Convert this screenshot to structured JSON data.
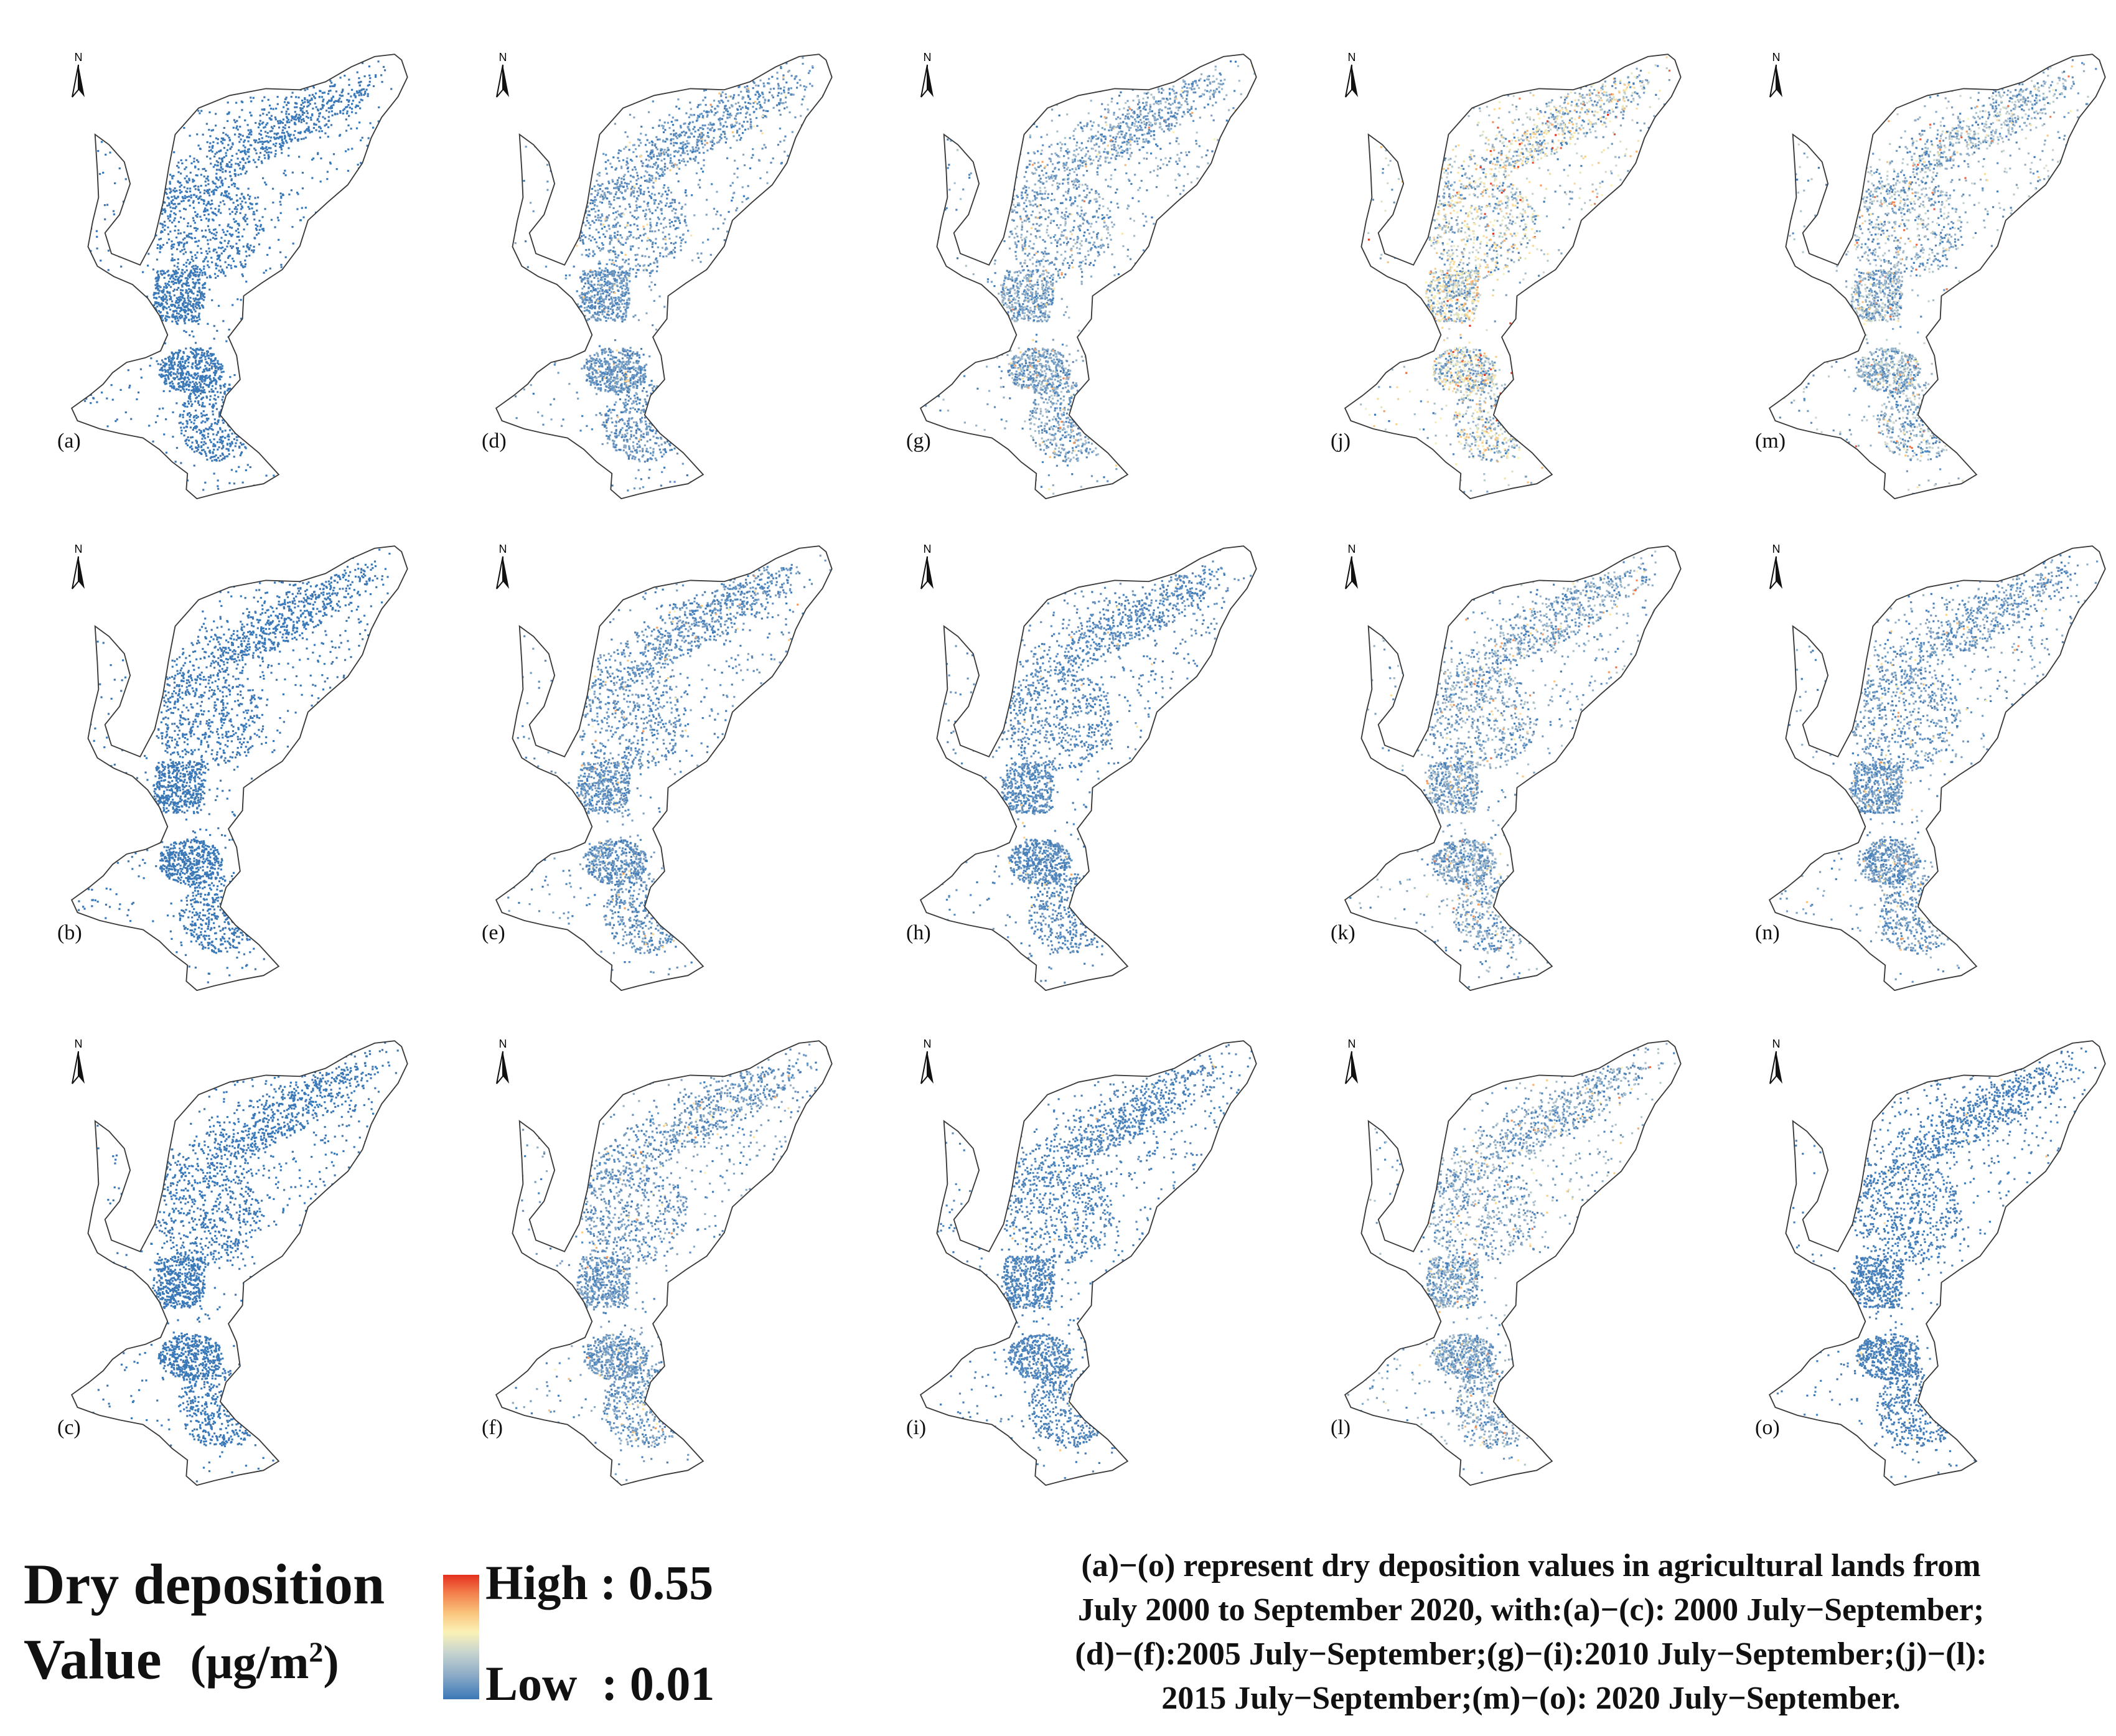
{
  "figure": {
    "panel_labels": [
      "(a)",
      "(b)",
      "(c)",
      "(d)",
      "(e)",
      "(f)",
      "(g)",
      "(h)",
      "(i)",
      "(j)",
      "(k)",
      "(l)",
      "(m)",
      "(n)",
      "(o)"
    ],
    "north_arrow_label": "N",
    "panel_ramp_levels": [
      0.0,
      0.0,
      0.0,
      0.18,
      0.16,
      0.2,
      0.28,
      0.12,
      0.08,
      0.55,
      0.3,
      0.3,
      0.38,
      0.22,
      0.05
    ],
    "colors": {
      "boundary": "#3a3a3a",
      "low": "#3b78b7",
      "mid": "#fbf2b6",
      "high": "#e5301f"
    }
  },
  "legend": {
    "title_line1": "Dry deposition",
    "title_line2": "Value",
    "unit_prefix": "(μg/m",
    "unit_sup": "2",
    "unit_suffix": ")",
    "high_label": "High",
    "high_value": ": 0.55",
    "low_label": "Low",
    "low_value": ": 0.01"
  },
  "caption": {
    "line1": "(a)−(o) represent dry deposition values in agricultural lands from",
    "line2": "July 2000 to September 2020, with:(a)−(c): 2000 July−September;",
    "line3": "(d)−(f):2005 July−September;(g)−(i):2010 July−September;(j)−(l):",
    "line4": "2015 July−September;(m)−(o): 2020 July−September."
  }
}
